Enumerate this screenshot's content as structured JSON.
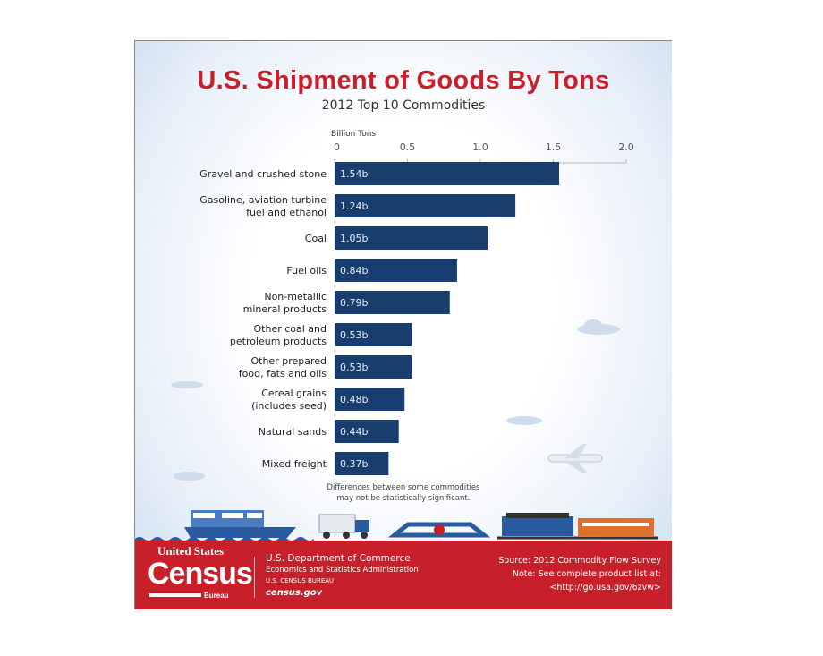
{
  "title": "U.S. Shipment of Goods By Tons",
  "subtitle": "2012 Top 10 Commodities",
  "chart_data": {
    "type": "bar",
    "orientation": "horizontal",
    "title": "U.S. Shipment of Goods By Tons",
    "subtitle": "2012 Top 10 Commodities",
    "xlabel": "Billion Tons",
    "xlim": [
      0,
      2.0
    ],
    "xticks": [
      "0",
      "0.5",
      "1.0",
      "1.5",
      "2.0"
    ],
    "axis_position": "top",
    "grid": false,
    "bar_color": "#173e6e",
    "categories": [
      "Gravel and crushed stone",
      "Gasoline, aviation turbine\nfuel and ethanol",
      "Coal",
      "Fuel oils",
      "Non-metallic\nmineral products",
      "Other coal and\npetroleum products",
      "Other prepared\nfood, fats and oils",
      "Cereal grains\n(includes seed)",
      "Natural sands",
      "Mixed freight"
    ],
    "values": [
      1.54,
      1.24,
      1.05,
      0.84,
      0.79,
      0.53,
      0.53,
      0.48,
      0.44,
      0.37
    ],
    "data_labels": [
      "1.54b",
      "1.24b",
      "1.05b",
      "0.84b",
      "0.79b",
      "0.53b",
      "0.53b",
      "0.48b",
      "0.44b",
      "0.37b"
    ],
    "annotation": "Differences between some commodities\nmay not be statistically significant."
  },
  "footer": {
    "logo_text": "United States Census Bureau",
    "logo_us": "United States",
    "logo_census": "Census",
    "logo_bureau": "Bureau",
    "dept": "U.S. Department of Commerce",
    "esa": "Economics and Statistics Administration",
    "bureau": "U.S. CENSUS BUREAU",
    "website": "census.gov",
    "source": "Source: 2012 Commodity Flow Survey",
    "note": "Note: See complete product list at:",
    "link": "<http://go.usa.gov/6zvw>"
  },
  "colors": {
    "title": "#c8202a",
    "bar": "#173e6e",
    "footer": "#c8202a"
  }
}
